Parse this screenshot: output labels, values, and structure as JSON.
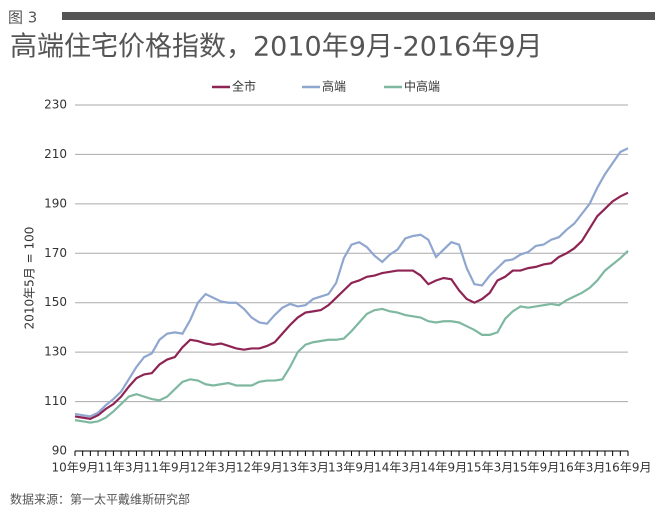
{
  "figure_label": "图 3",
  "source": "数据来源：第一太平戴维斯研究部",
  "chart_data": {
    "type": "line",
    "title": "高端住宅价格指数，2010年9月-2016年9月",
    "y_label": "2010年5月 = 100",
    "categories": [
      "10年9月",
      null,
      null,
      null,
      null,
      null,
      "11年3月",
      null,
      null,
      null,
      null,
      null,
      "11年9月",
      null,
      null,
      null,
      null,
      null,
      "12年3月",
      null,
      null,
      null,
      null,
      null,
      "12年9月",
      null,
      null,
      null,
      null,
      null,
      "13年3月",
      null,
      null,
      null,
      null,
      null,
      "13年9月",
      null,
      null,
      null,
      null,
      null,
      "14年3月",
      null,
      null,
      null,
      null,
      null,
      "14年9月",
      null,
      null,
      null,
      null,
      null,
      "15年3月",
      null,
      null,
      null,
      null,
      null,
      "15年9月",
      null,
      null,
      null,
      null,
      null,
      "16年3月",
      null,
      null,
      null,
      null,
      null,
      "16年9月"
    ],
    "series": [
      {
        "name": "全市",
        "color": "#8e2453",
        "values": [
          104,
          103.5,
          103,
          104.5,
          107,
          109,
          112,
          116,
          119.5,
          121,
          121.5,
          125,
          127,
          128,
          132,
          135,
          134.5,
          133.5,
          133,
          133.5,
          132.5,
          131.5,
          131,
          131.5,
          131.5,
          132.5,
          134,
          137.5,
          141,
          144,
          146,
          146.5,
          147,
          149,
          152,
          155,
          158,
          159,
          160.5,
          161,
          162,
          162.5,
          163,
          163,
          163,
          161,
          157.5,
          159,
          160,
          159.5,
          155,
          151.5,
          150,
          151.5,
          154,
          159,
          160.5,
          163,
          163,
          164,
          164.5,
          165.5,
          166,
          168.5,
          170,
          172,
          175,
          180,
          185,
          188,
          191,
          193,
          194.5
        ]
      },
      {
        "name": "高端",
        "color": "#8fa6cf",
        "values": [
          105,
          104.5,
          104,
          105.5,
          108.5,
          111,
          114,
          119,
          124,
          128,
          129.5,
          135,
          137.5,
          138,
          137.5,
          143,
          150,
          153.5,
          152,
          150.5,
          150,
          150,
          147.5,
          144,
          142,
          141.5,
          145,
          148,
          149.5,
          148.5,
          149,
          151.5,
          152.5,
          153.5,
          158,
          168,
          173.5,
          174.5,
          172.5,
          169,
          166.5,
          169.5,
          171.5,
          176,
          177,
          177.5,
          175.5,
          168.5,
          171.5,
          174.5,
          173.5,
          164,
          157.5,
          157,
          161,
          164,
          167,
          167.5,
          169.5,
          170.5,
          173,
          173.5,
          175.5,
          176.5,
          179.5,
          182,
          186,
          190,
          196.5,
          202,
          206.5,
          211,
          212.5
        ]
      },
      {
        "name": "中高端",
        "color": "#7fb8a0",
        "values": [
          102.5,
          102,
          101.5,
          102,
          103.5,
          106,
          109,
          112,
          113,
          112,
          111,
          110.5,
          112,
          115,
          118,
          119,
          118.5,
          117,
          116.5,
          117,
          117.5,
          116.5,
          116.5,
          116.5,
          118,
          118.5,
          118.5,
          119,
          124,
          130,
          133,
          134,
          134.5,
          135,
          135,
          135.5,
          138.5,
          142,
          145.5,
          147,
          147.5,
          146.5,
          146,
          145,
          144.5,
          144,
          142.5,
          142,
          142.5,
          142.5,
          142,
          140.5,
          139,
          137,
          137,
          138,
          143.5,
          146.5,
          148.5,
          148,
          148.5,
          149,
          149.5,
          149,
          151,
          152.5,
          154,
          156,
          159,
          163,
          165.5,
          168,
          171
        ]
      }
    ],
    "ylim": [
      90,
      230
    ],
    "yticks": [
      90,
      110,
      130,
      150,
      170,
      190,
      210,
      230
    ],
    "grid": true,
    "legend": "top"
  }
}
